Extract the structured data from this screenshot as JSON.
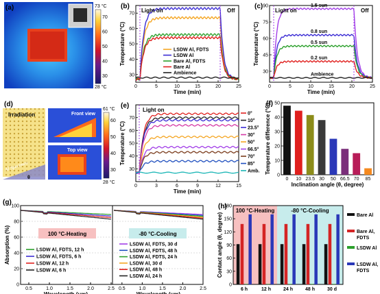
{
  "panels": {
    "a": {
      "label": "(a)",
      "scale_max": "73 °C",
      "scale_min": "28 °C",
      "ticks": [
        "70",
        "60",
        "50",
        "40",
        "30"
      ]
    },
    "d": {
      "label": "(d)",
      "irradiation": "Irradiation",
      "specimen": "Al Specimen",
      "theta": "θ",
      "front": "Front view",
      "top": "Top view",
      "scale_max": "61 °C",
      "scale_min": "28 °C",
      "ticks": [
        "60",
        "50",
        "40",
        "30"
      ]
    }
  },
  "chart_data": [
    {
      "id": "b",
      "type": "line",
      "label": "(b)",
      "xlabel": "Time (min)",
      "ylabel": "Temperature (°C)",
      "xlim": [
        0,
        25
      ],
      "ylim": [
        25,
        75
      ],
      "xticks": [
        "0",
        "5",
        "10",
        "15",
        "20",
        "25"
      ],
      "yticks": [
        "30",
        "40",
        "50",
        "60",
        "70"
      ],
      "annotations": {
        "on": "Light on",
        "off": "Off"
      },
      "series": [
        {
          "name": "LSDW Al, FDTS",
          "color": "#f5a623",
          "plateau": 67
        },
        {
          "name": "LSDW Al",
          "color": "#3a2bd4",
          "plateau": 73
        },
        {
          "name": "Bare Al, FDTS",
          "color": "#2ca02c",
          "plateau": 56
        },
        {
          "name": "Bare Al",
          "color": "#e0201e",
          "plateau": 54
        },
        {
          "name": "Ambience",
          "color": "#222222",
          "plateau": 28
        }
      ],
      "on_time": 1,
      "off_time": 20.5
    },
    {
      "id": "c",
      "type": "line",
      "label": "(c)",
      "xlabel": "Time (min)",
      "ylabel": "Temperature (°C)",
      "xlim": [
        0,
        25
      ],
      "ylim": [
        20,
        90
      ],
      "xticks": [
        "0",
        "5",
        "10",
        "15",
        "20",
        "25"
      ],
      "yticks": [
        "30",
        "45",
        "60",
        "75",
        "90"
      ],
      "annotations": {
        "on": "Light on",
        "off": "Off"
      },
      "series": [
        {
          "name": "1.5 sun",
          "color": "#a23ee8",
          "plateau": 87
        },
        {
          "name": "0.8 sun",
          "color": "#3a2bd4",
          "plateau": 63
        },
        {
          "name": "0.5 sun",
          "color": "#2ca02c",
          "plateau": 53
        },
        {
          "name": "0.2 sun",
          "color": "#e0201e",
          "plateau": 39
        },
        {
          "name": "Ambience",
          "color": "#222222",
          "plateau": 24
        }
      ],
      "on_time": 1,
      "off_time": 20.5
    },
    {
      "id": "e",
      "type": "line",
      "label": "(e)",
      "xlabel": "Time (min)",
      "ylabel": "Temperature (°C)",
      "xlim": [
        0,
        15
      ],
      "ylim": [
        20,
        80
      ],
      "xticks": [
        "0",
        "3",
        "6",
        "9",
        "12",
        "15"
      ],
      "yticks": [
        "30",
        "40",
        "50",
        "60",
        "70"
      ],
      "annotations": {
        "on": "Light on"
      },
      "series": [
        {
          "name": "0°",
          "color": "#e0201e",
          "plateau": 73
        },
        {
          "name": "10°",
          "color": "#222222",
          "plateau": 70
        },
        {
          "name": "23.5°",
          "color": "#3a2bd4",
          "plateau": 68
        },
        {
          "name": "30°",
          "color": "#d63aa6",
          "plateau": 64
        },
        {
          "name": "50°",
          "color": "#f5a623",
          "plateau": 55
        },
        {
          "name": "66.5°",
          "color": "#a23ee8",
          "plateau": 47
        },
        {
          "name": "70°",
          "color": "#7a3b1c",
          "plateau": 43
        },
        {
          "name": "85°",
          "color": "#1f4fbf",
          "plateau": 36
        },
        {
          "name": "Amb.",
          "color": "#1ab6b6",
          "plateau": 27
        }
      ],
      "on_time": 0.5
    },
    {
      "id": "f",
      "type": "bar",
      "label": "(f)",
      "xlabel": "Inclination angle (θ, degree)",
      "ylabel": "Temperature difference (°C)",
      "ylim": [
        0,
        50
      ],
      "yticks": [
        "0",
        "10",
        "20",
        "30",
        "40",
        "50"
      ],
      "categories": [
        "0",
        "10",
        "23.5",
        "30",
        "50",
        "66.5",
        "70",
        "85"
      ],
      "values": [
        48,
        44.5,
        41.5,
        38,
        25,
        18,
        15,
        4.5
      ],
      "colors": [
        "#111111",
        "#e0201e",
        "#8c8c1a",
        "#3a3a3a",
        "#2a38b8",
        "#7a2e7a",
        "#b81c58",
        "#f5891f"
      ]
    },
    {
      "id": "g",
      "type": "line",
      "label": "(g)",
      "xlabel": "Wavelength (μm)",
      "ylabel": "Absorption (%)",
      "xlim": [
        0.3,
        2.5
      ],
      "ylim": [
        0,
        100
      ],
      "xticks": [
        "0.5",
        "1.0",
        "1.5",
        "2.0",
        "2.5"
      ],
      "yticks": [
        "0",
        "20",
        "40",
        "60",
        "80",
        "100"
      ],
      "panel_titles": {
        "left": "100 °C-Heating",
        "right": "-80 °C-Cooling"
      },
      "left_series": [
        {
          "name": "LSDW Al, FDTS, 12 h",
          "color": "#2ca02c"
        },
        {
          "name": "LSDW Al, FDTS, 6 h",
          "color": "#3a2bd4"
        },
        {
          "name": "LSDW Al, 12 h",
          "color": "#e0201e"
        },
        {
          "name": "LSDW Al, 6 h",
          "color": "#222222"
        }
      ],
      "right_series": [
        {
          "name": "LSDW Al, FDTS, 30 d",
          "color": "#a23ee8"
        },
        {
          "name": "LSDW Al, FDTS, 48 h",
          "color": "#1f4fbf"
        },
        {
          "name": "LSDW Al, FDTS, 24 h",
          "color": "#2ca02c"
        },
        {
          "name": "LSDW Al, 30 d",
          "color": "#f5a623"
        },
        {
          "name": "LSDW Al, 48 h",
          "color": "#e0201e"
        },
        {
          "name": "LSDW Al, 24 h",
          "color": "#222222"
        }
      ]
    },
    {
      "id": "h",
      "type": "bar",
      "label": "(h)",
      "xlabel": "",
      "ylabel": "Contact angle (θ, degree)",
      "ylim": [
        0,
        180
      ],
      "yticks": [
        "0",
        "30",
        "60",
        "90",
        "120",
        "150",
        "180"
      ],
      "categories": [
        "6 h",
        "12 h",
        "24 h",
        "48 h",
        "30 d"
      ],
      "panel_titles": {
        "left": "100 °C-Heating",
        "right": "-80 °C-Cooling"
      },
      "series": [
        {
          "name": "Bare Al",
          "color": "#111111",
          "values": [
            92,
            92,
            92,
            92,
            92
          ]
        },
        {
          "name": "Bare Al, FDTS",
          "color": "#d42424",
          "values": [
            138,
            138,
            138,
            138,
            138
          ]
        },
        {
          "name": "LSDW Al",
          "color": "#2ca02c",
          "values": [
            1,
            1,
            1,
            1,
            1
          ]
        },
        {
          "name": "LSDW Al, FDTS",
          "color": "#2a38b8",
          "values": [
            160,
            160,
            160,
            160,
            160
          ]
        }
      ]
    }
  ]
}
